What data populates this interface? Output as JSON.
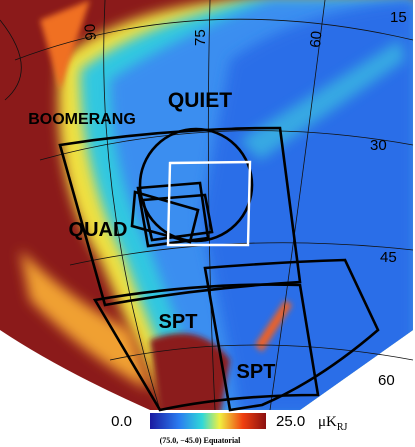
{
  "map": {
    "labels": [
      "QUIET",
      "BOOMERANG",
      "QUAD",
      "SPT",
      "SPT"
    ],
    "grid_labels": [
      "90",
      "75",
      "60",
      "15",
      "30",
      "45",
      "60"
    ],
    "colorbar": {
      "min_label": "0.0",
      "max_label": "25.0",
      "unit": "μK",
      "unit_sub": "RJ"
    },
    "caption": "(75.0, −45.0) Equatorial"
  }
}
